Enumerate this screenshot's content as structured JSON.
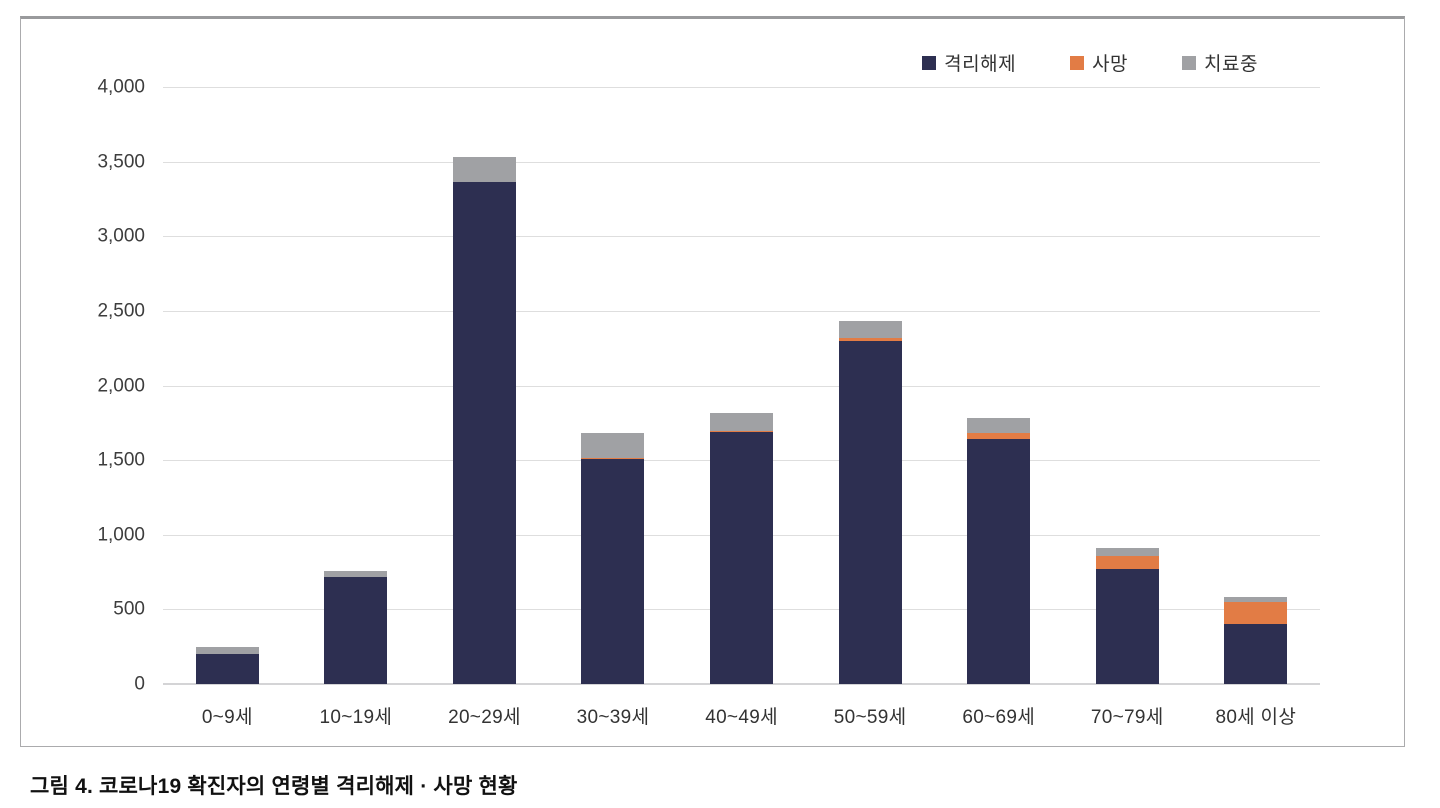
{
  "caption": "그림 4. 코로나19 확진자의 연령별 격리해제 · 사망 현황",
  "colors": {
    "released": "#2d2f51",
    "death": "#e27c45",
    "treating": "#a0a1a4",
    "gridline": "#dedede",
    "axis_text": "#3d3d3d"
  },
  "chart_data": {
    "type": "bar",
    "stacked": true,
    "title": "",
    "xlabel": "",
    "ylabel": "",
    "categories": [
      "0~9세",
      "10~19세",
      "20~29세",
      "30~39세",
      "40~49세",
      "50~59세",
      "60~69세",
      "70~79세",
      "80세 이상"
    ],
    "series": [
      {
        "name": "격리해제",
        "color": "#2d2f51",
        "values": [
          200,
          715,
          3365,
          1510,
          1690,
          2300,
          1640,
          770,
          405
        ]
      },
      {
        "name": "사망",
        "color": "#e27c45",
        "values": [
          0,
          0,
          0,
          2,
          5,
          20,
          45,
          90,
          145
        ]
      },
      {
        "name": "치료중",
        "color": "#a0a1a4",
        "values": [
          45,
          45,
          165,
          170,
          120,
          115,
          95,
          50,
          35
        ]
      }
    ],
    "stack_totals": [
      245,
      760,
      3530,
      1682,
      1815,
      2435,
      1780,
      910,
      585
    ],
    "ylim": [
      0,
      4000
    ],
    "yticks": [
      0,
      500,
      1000,
      1500,
      2000,
      2500,
      3000,
      3500,
      4000
    ],
    "ytick_labels": [
      "0",
      "500",
      "1,000",
      "1,500",
      "2,000",
      "2,500",
      "3,000",
      "3,500",
      "4,000"
    ],
    "grid": true,
    "legend_position": "top-right"
  }
}
